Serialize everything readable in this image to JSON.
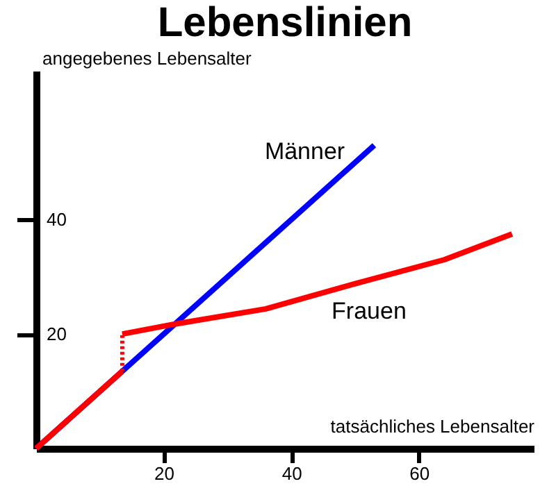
{
  "chart_data": {
    "type": "line",
    "title": "Lebenslinien",
    "xlabel": "tatsächliches Lebensalter",
    "ylabel": "angegebenes Lebensalter",
    "xlim": [
      0,
      78
    ],
    "ylim": [
      0,
      66
    ],
    "xticks": [
      20,
      40,
      60
    ],
    "yticks": [
      20,
      40
    ],
    "grid": false,
    "marker": "none",
    "series": [
      {
        "name": "Männer",
        "color": "#0000ff",
        "x": [
          0,
          53
        ],
        "values": [
          0,
          53
        ]
      },
      {
        "color": "#ff0000",
        "x": [
          0,
          13.5
        ],
        "values": [
          0,
          13.5
        ]
      },
      {
        "color": "#ff0000",
        "line_style": "dotted",
        "x": [
          13.5,
          13.5
        ],
        "values": [
          13.5,
          20
        ]
      },
      {
        "name": "Frauen",
        "color": "#ff0000",
        "x": [
          13.5,
          21.5,
          36,
          50,
          64,
          74.6
        ],
        "values": [
          20,
          21.7,
          24.4,
          28.8,
          33,
          37.5
        ]
      }
    ]
  }
}
